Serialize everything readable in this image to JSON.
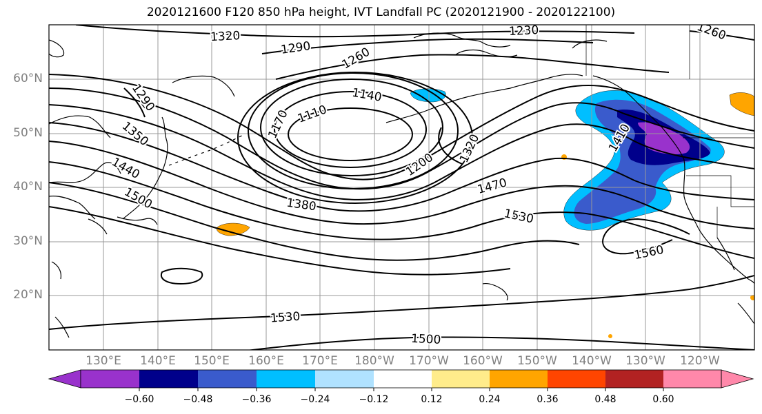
{
  "title": "2020121600 F120 850 hPa height, IVT Landfall PC (2020121900 - 2020122100)",
  "lat_labels": [
    "60°N",
    "50°N",
    "40°N",
    "30°N",
    "20°N"
  ],
  "lon_labels": [
    "130°E",
    "140°E",
    "150°E",
    "160°E",
    "170°E",
    "180°W",
    "170°W",
    "160°W",
    "150°W",
    "140°W",
    "130°W",
    "120°W"
  ],
  "contour_labels": [
    "1320",
    "1290",
    "1260",
    "1230",
    "1260",
    "1290",
    "1350",
    "1440",
    "1500",
    "1170",
    "1110",
    "1140",
    "1200",
    "1320",
    "1410",
    "1470",
    "1380",
    "1530",
    "1560",
    "1530",
    "1500"
  ],
  "colorbar": {
    "tick_labels": [
      "−0.60",
      "−0.48",
      "−0.36",
      "−0.24",
      "−0.12",
      "0.12",
      "0.24",
      "0.36",
      "0.48",
      "0.60"
    ],
    "colors": [
      "#9932CC",
      "#00008B",
      "#3A5BCC",
      "#00BFFF",
      "#B0E2FF",
      "#FFFFFF",
      "#FFEC8B",
      "#FFA500",
      "#FF4500",
      "#B22222",
      "#FF88AA"
    ]
  },
  "colors": {
    "contour": "#000000",
    "grid": "#999999",
    "axis_label": "#808080"
  }
}
